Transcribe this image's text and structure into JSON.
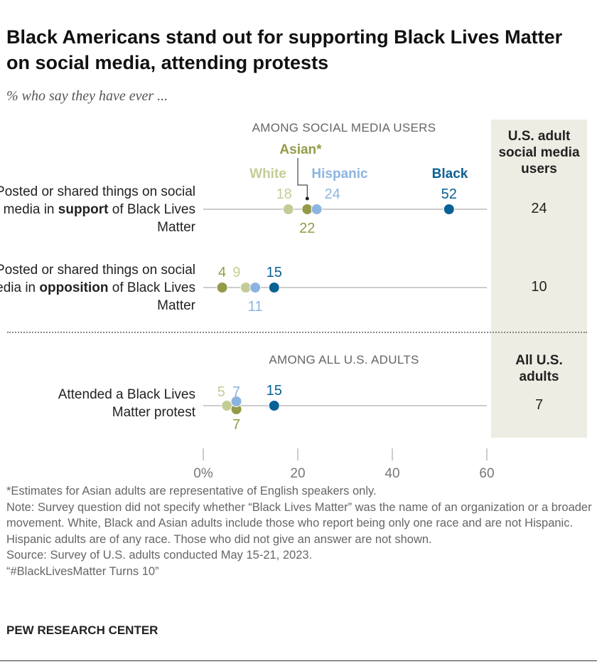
{
  "title": "Black Americans stand out for supporting Black Lives Matter on social media, attending protests",
  "subtitle": "% who say they have ever ...",
  "colors": {
    "White": "#c4cc96",
    "Asian": "#949a47",
    "Hispanic": "#8cb4e0",
    "Black": "#0a6195",
    "panel": "#eeede3"
  },
  "sections": {
    "social": "AMONG SOCIAL MEDIA USERS",
    "all": "AMONG ALL U.S. ADULTS"
  },
  "panel": {
    "head_social": "U.S. adult social media users",
    "head_all": "All U.S. adults"
  },
  "rows": [
    {
      "label_pre": "Posted or shared things on social media in ",
      "label_bold": "support",
      "label_post": " of Black Lives Matter",
      "total": "24"
    },
    {
      "label_pre": "Posted or shared things on social media in ",
      "label_bold": "opposition",
      "label_post": " of Black Lives Matter",
      "total": "10"
    },
    {
      "label_pre": "Attended a Black Lives Matter protest",
      "label_bold": "",
      "label_post": "",
      "total": "7"
    }
  ],
  "chart_data": {
    "type": "dot",
    "xlim": [
      0,
      60
    ],
    "ticks": [
      "0%",
      "20",
      "40",
      "60"
    ],
    "tick_values": [
      0,
      20,
      40,
      60
    ],
    "categories": [
      "Posted or shared things on social media in support of Black Lives Matter",
      "Posted or shared things on social media in opposition of Black Lives Matter",
      "Attended a Black Lives Matter protest"
    ],
    "series": [
      {
        "name": "White",
        "values": [
          18,
          9,
          5
        ]
      },
      {
        "name": "Asian*",
        "values": [
          22,
          4,
          7
        ]
      },
      {
        "name": "Hispanic",
        "values": [
          24,
          11,
          7
        ]
      },
      {
        "name": "Black",
        "values": [
          52,
          15,
          15
        ]
      }
    ],
    "totals": [
      24,
      10,
      7
    ]
  },
  "notes": [
    "*Estimates for Asian adults are representative of English speakers only.",
    "Note: Survey question did not specify whether “Black Lives Matter” was the name of an organization or a broader movement. White, Black and Asian adults include those who report being only one race and are not Hispanic. Hispanic adults are of any race. Those who did not give an answer are not shown.",
    "Source: Survey of U.S. adults conducted May 15-21, 2023.",
    "“#BlackLivesMatter Turns 10”"
  ],
  "brand": "PEW RESEARCH CENTER"
}
